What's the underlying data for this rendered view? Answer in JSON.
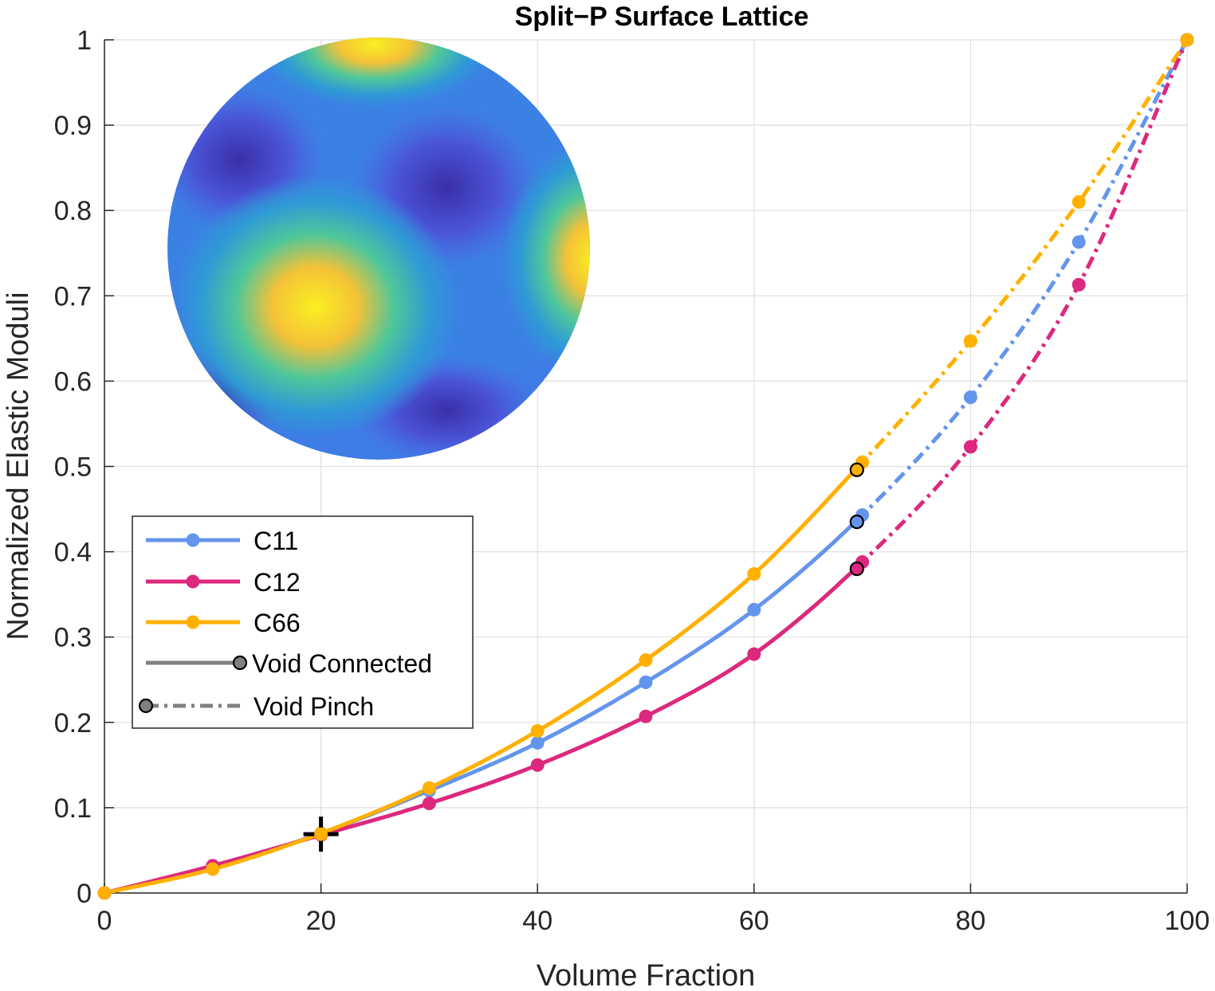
{
  "chart_data": {
    "type": "line",
    "title": "Split−P Surface Lattice",
    "xlabel": "Volume Fraction",
    "ylabel": "Normalized Elastic Moduli",
    "xlim": [
      0,
      100
    ],
    "ylim": [
      0,
      1
    ],
    "xticks": [
      "0",
      "20",
      "40",
      "60",
      "80",
      "100"
    ],
    "yticks": [
      "0",
      "0.1",
      "0.2",
      "0.3",
      "0.4",
      "0.5",
      "0.6",
      "0.7",
      "0.8",
      "0.9",
      "1"
    ],
    "grid": true,
    "legend_position": "middle-left",
    "pinch_x": 69.5,
    "series": [
      {
        "name": "C11",
        "color": "#6495ED",
        "x": [
          0,
          10,
          20,
          30,
          40,
          50,
          60,
          70,
          80,
          90,
          100
        ],
        "y": [
          0,
          0.03,
          0.07,
          0.12,
          0.176,
          0.247,
          0.332,
          0.443,
          0.581,
          0.763,
          1.0
        ],
        "pinch_y": 0.435
      },
      {
        "name": "C12",
        "color": "#DC287D",
        "x": [
          0,
          10,
          20,
          30,
          40,
          50,
          60,
          70,
          80,
          90,
          100
        ],
        "y": [
          0,
          0.032,
          0.068,
          0.105,
          0.15,
          0.207,
          0.28,
          0.388,
          0.523,
          0.713,
          1.0
        ],
        "pinch_y": 0.38
      },
      {
        "name": "C66",
        "color": "#FFB000",
        "x": [
          0,
          10,
          20,
          30,
          40,
          50,
          60,
          70,
          80,
          90,
          100
        ],
        "y": [
          0,
          0.028,
          0.07,
          0.123,
          0.19,
          0.273,
          0.374,
          0.505,
          0.647,
          0.81,
          1.0
        ],
        "pinch_y": 0.496
      }
    ],
    "legend": {
      "void_connected": "Void Connected",
      "void_pinch": "Void Pinch"
    },
    "marker_20": {
      "x": 20,
      "y": 0.069
    }
  }
}
